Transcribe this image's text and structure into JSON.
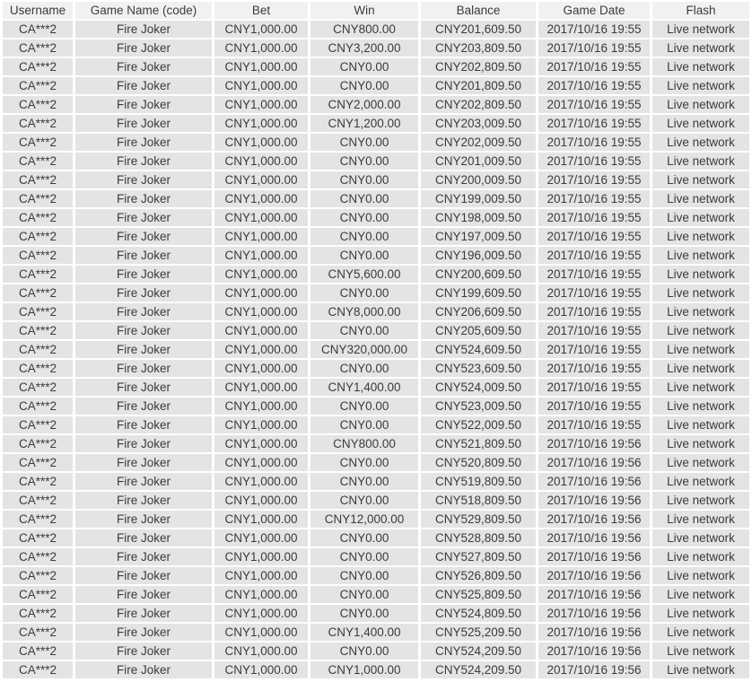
{
  "colors": {
    "gap": "#ffffff",
    "header_bg": "#f1f1f1",
    "row_bg": "#e4e4e4",
    "text": "#3b3b3b"
  },
  "table": {
    "columns": [
      {
        "key": "username",
        "label": "Username"
      },
      {
        "key": "game-name",
        "label": "Game Name (code)"
      },
      {
        "key": "bet",
        "label": "Bet"
      },
      {
        "key": "win",
        "label": "Win"
      },
      {
        "key": "balance",
        "label": "Balance"
      },
      {
        "key": "game-date",
        "label": "Game Date"
      },
      {
        "key": "flash",
        "label": "Flash"
      }
    ],
    "rows": [
      [
        "CA***2",
        "Fire Joker",
        "CNY1,000.00",
        "CNY800.00",
        "CNY201,609.50",
        "2017/10/16 19:55",
        "Live network"
      ],
      [
        "CA***2",
        "Fire Joker",
        "CNY1,000.00",
        "CNY3,200.00",
        "CNY203,809.50",
        "2017/10/16 19:55",
        "Live network"
      ],
      [
        "CA***2",
        "Fire Joker",
        "CNY1,000.00",
        "CNY0.00",
        "CNY202,809.50",
        "2017/10/16 19:55",
        "Live network"
      ],
      [
        "CA***2",
        "Fire Joker",
        "CNY1,000.00",
        "CNY0.00",
        "CNY201,809.50",
        "2017/10/16 19:55",
        "Live network"
      ],
      [
        "CA***2",
        "Fire Joker",
        "CNY1,000.00",
        "CNY2,000.00",
        "CNY202,809.50",
        "2017/10/16 19:55",
        "Live network"
      ],
      [
        "CA***2",
        "Fire Joker",
        "CNY1,000.00",
        "CNY1,200.00",
        "CNY203,009.50",
        "2017/10/16 19:55",
        "Live network"
      ],
      [
        "CA***2",
        "Fire Joker",
        "CNY1,000.00",
        "CNY0.00",
        "CNY202,009.50",
        "2017/10/16 19:55",
        "Live network"
      ],
      [
        "CA***2",
        "Fire Joker",
        "CNY1,000.00",
        "CNY0.00",
        "CNY201,009.50",
        "2017/10/16 19:55",
        "Live network"
      ],
      [
        "CA***2",
        "Fire Joker",
        "CNY1,000.00",
        "CNY0.00",
        "CNY200,009.50",
        "2017/10/16 19:55",
        "Live network"
      ],
      [
        "CA***2",
        "Fire Joker",
        "CNY1,000.00",
        "CNY0.00",
        "CNY199,009.50",
        "2017/10/16 19:55",
        "Live network"
      ],
      [
        "CA***2",
        "Fire Joker",
        "CNY1,000.00",
        "CNY0.00",
        "CNY198,009.50",
        "2017/10/16 19:55",
        "Live network"
      ],
      [
        "CA***2",
        "Fire Joker",
        "CNY1,000.00",
        "CNY0.00",
        "CNY197,009.50",
        "2017/10/16 19:55",
        "Live network"
      ],
      [
        "CA***2",
        "Fire Joker",
        "CNY1,000.00",
        "CNY0.00",
        "CNY196,009.50",
        "2017/10/16 19:55",
        "Live network"
      ],
      [
        "CA***2",
        "Fire Joker",
        "CNY1,000.00",
        "CNY5,600.00",
        "CNY200,609.50",
        "2017/10/16 19:55",
        "Live network"
      ],
      [
        "CA***2",
        "Fire Joker",
        "CNY1,000.00",
        "CNY0.00",
        "CNY199,609.50",
        "2017/10/16 19:55",
        "Live network"
      ],
      [
        "CA***2",
        "Fire Joker",
        "CNY1,000.00",
        "CNY8,000.00",
        "CNY206,609.50",
        "2017/10/16 19:55",
        "Live network"
      ],
      [
        "CA***2",
        "Fire Joker",
        "CNY1,000.00",
        "CNY0.00",
        "CNY205,609.50",
        "2017/10/16 19:55",
        "Live network"
      ],
      [
        "CA***2",
        "Fire Joker",
        "CNY1,000.00",
        "CNY320,000.00",
        "CNY524,609.50",
        "2017/10/16 19:55",
        "Live network"
      ],
      [
        "CA***2",
        "Fire Joker",
        "CNY1,000.00",
        "CNY0.00",
        "CNY523,609.50",
        "2017/10/16 19:55",
        "Live network"
      ],
      [
        "CA***2",
        "Fire Joker",
        "CNY1,000.00",
        "CNY1,400.00",
        "CNY524,009.50",
        "2017/10/16 19:55",
        "Live network"
      ],
      [
        "CA***2",
        "Fire Joker",
        "CNY1,000.00",
        "CNY0.00",
        "CNY523,009.50",
        "2017/10/16 19:55",
        "Live network"
      ],
      [
        "CA***2",
        "Fire Joker",
        "CNY1,000.00",
        "CNY0.00",
        "CNY522,009.50",
        "2017/10/16 19:55",
        "Live network"
      ],
      [
        "CA***2",
        "Fire Joker",
        "CNY1,000.00",
        "CNY800.00",
        "CNY521,809.50",
        "2017/10/16 19:56",
        "Live network"
      ],
      [
        "CA***2",
        "Fire Joker",
        "CNY1,000.00",
        "CNY0.00",
        "CNY520,809.50",
        "2017/10/16 19:56",
        "Live network"
      ],
      [
        "CA***2",
        "Fire Joker",
        "CNY1,000.00",
        "CNY0.00",
        "CNY519,809.50",
        "2017/10/16 19:56",
        "Live network"
      ],
      [
        "CA***2",
        "Fire Joker",
        "CNY1,000.00",
        "CNY0.00",
        "CNY518,809.50",
        "2017/10/16 19:56",
        "Live network"
      ],
      [
        "CA***2",
        "Fire Joker",
        "CNY1,000.00",
        "CNY12,000.00",
        "CNY529,809.50",
        "2017/10/16 19:56",
        "Live network"
      ],
      [
        "CA***2",
        "Fire Joker",
        "CNY1,000.00",
        "CNY0.00",
        "CNY528,809.50",
        "2017/10/16 19:56",
        "Live network"
      ],
      [
        "CA***2",
        "Fire Joker",
        "CNY1,000.00",
        "CNY0.00",
        "CNY527,809.50",
        "2017/10/16 19:56",
        "Live network"
      ],
      [
        "CA***2",
        "Fire Joker",
        "CNY1,000.00",
        "CNY0.00",
        "CNY526,809.50",
        "2017/10/16 19:56",
        "Live network"
      ],
      [
        "CA***2",
        "Fire Joker",
        "CNY1,000.00",
        "CNY0.00",
        "CNY525,809.50",
        "2017/10/16 19:56",
        "Live network"
      ],
      [
        "CA***2",
        "Fire Joker",
        "CNY1,000.00",
        "CNY0.00",
        "CNY524,809.50",
        "2017/10/16 19:56",
        "Live network"
      ],
      [
        "CA***2",
        "Fire Joker",
        "CNY1,000.00",
        "CNY1,400.00",
        "CNY525,209.50",
        "2017/10/16 19:56",
        "Live network"
      ],
      [
        "CA***2",
        "Fire Joker",
        "CNY1,000.00",
        "CNY0.00",
        "CNY524,209.50",
        "2017/10/16 19:56",
        "Live network"
      ],
      [
        "CA***2",
        "Fire Joker",
        "CNY1,000.00",
        "CNY1,000.00",
        "CNY524,209.50",
        "2017/10/16 19:56",
        "Live network"
      ]
    ]
  }
}
